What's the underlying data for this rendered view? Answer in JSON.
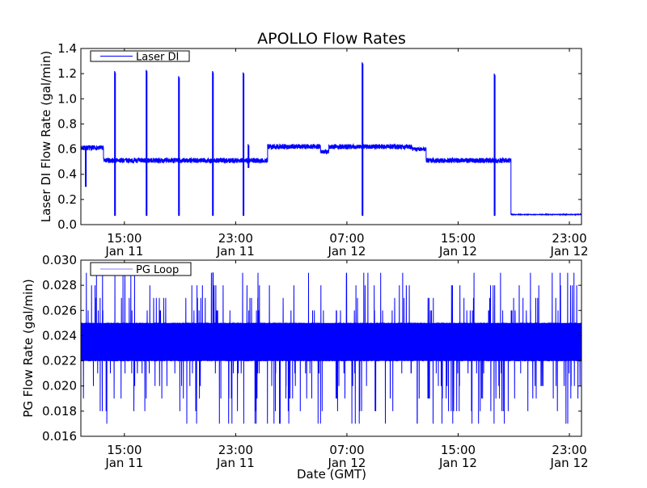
{
  "chart_data": [
    {
      "type": "line",
      "title": "APOLLO Flow Rates",
      "xlabel": "",
      "ylabel": "Laser DI Flow Rate (gal/min)",
      "xunit": "hours since 00:00 Jan 11 (GMT)",
      "xlim": [
        11.87,
        47.87
      ],
      "ylim": [
        0.0,
        1.4
      ],
      "yticks": [
        "0.0",
        "0.2",
        "0.4",
        "0.6",
        "0.8",
        "1.0",
        "1.2",
        "1.4"
      ],
      "xticks": [
        {
          "hour": 15,
          "time": "15:00",
          "date": "Jan 11"
        },
        {
          "hour": 23,
          "time": "23:00",
          "date": "Jan 11"
        },
        {
          "hour": 31,
          "time": "07:00",
          "date": "Jan 12"
        },
        {
          "hour": 39,
          "time": "15:00",
          "date": "Jan 12"
        },
        {
          "hour": 47,
          "time": "23:00",
          "date": "Jan 12"
        }
      ],
      "legend": {
        "label": "Laser DI",
        "placement": "top-left"
      },
      "color": "#0000ff",
      "series": [
        {
          "name": "Laser DI",
          "segments": [
            {
              "start": 11.87,
              "end": 13.5,
              "level": 0.61,
              "noise": 0.02
            },
            {
              "start": 13.5,
              "end": 25.3,
              "level": 0.51,
              "noise": 0.02
            },
            {
              "start": 25.3,
              "end": 29.1,
              "level": 0.62,
              "noise": 0.02
            },
            {
              "start": 29.1,
              "end": 29.7,
              "level": 0.58,
              "noise": 0.015
            },
            {
              "start": 29.7,
              "end": 35.7,
              "level": 0.62,
              "noise": 0.02
            },
            {
              "start": 35.7,
              "end": 36.7,
              "level": 0.6,
              "noise": 0.015
            },
            {
              "start": 36.7,
              "end": 42.8,
              "level": 0.51,
              "noise": 0.02
            },
            {
              "start": 42.8,
              "end": 47.87,
              "level": 0.08,
              "noise": 0.002
            }
          ],
          "spikes": [
            {
              "x": 12.2,
              "max": 0.62,
              "min": 0.3
            },
            {
              "x": 14.3,
              "max": 1.22,
              "min": 0.07
            },
            {
              "x": 16.57,
              "max": 1.23,
              "min": 0.07
            },
            {
              "x": 18.9,
              "max": 1.18,
              "min": 0.07
            },
            {
              "x": 21.34,
              "max": 1.22,
              "min": 0.07
            },
            {
              "x": 23.54,
              "max": 1.21,
              "min": 0.07
            },
            {
              "x": 23.9,
              "max": 0.64,
              "min": 0.45
            },
            {
              "x": 32.1,
              "max": 1.29,
              "min": 0.07
            },
            {
              "x": 41.6,
              "max": 1.2,
              "min": 0.07
            }
          ]
        }
      ]
    },
    {
      "type": "line",
      "title": "",
      "xlabel": "Date (GMT)",
      "ylabel": "PG Flow Rate (gal/min)",
      "xunit": "hours since 00:00 Jan 11 (GMT)",
      "xlim": [
        11.87,
        47.87
      ],
      "ylim": [
        0.016,
        0.03
      ],
      "yticks": [
        "0.016",
        "0.018",
        "0.020",
        "0.022",
        "0.024",
        "0.026",
        "0.028",
        "0.030"
      ],
      "xticks": [
        {
          "hour": 15,
          "time": "15:00",
          "date": "Jan 11"
        },
        {
          "hour": 23,
          "time": "23:00",
          "date": "Jan 11"
        },
        {
          "hour": 31,
          "time": "07:00",
          "date": "Jan 12"
        },
        {
          "hour": 39,
          "time": "15:00",
          "date": "Jan 12"
        },
        {
          "hour": 47,
          "time": "23:00",
          "date": "Jan 12"
        }
      ],
      "legend": {
        "label": "PG Loop",
        "placement": "top-left"
      },
      "color": "#0000ff",
      "series": [
        {
          "name": "PG Loop",
          "band": [
            0.022,
            0.025
          ],
          "quantum": 0.001,
          "excursion_range": [
            0.017,
            0.029
          ],
          "excursion_rate": 0.05
        }
      ]
    }
  ]
}
